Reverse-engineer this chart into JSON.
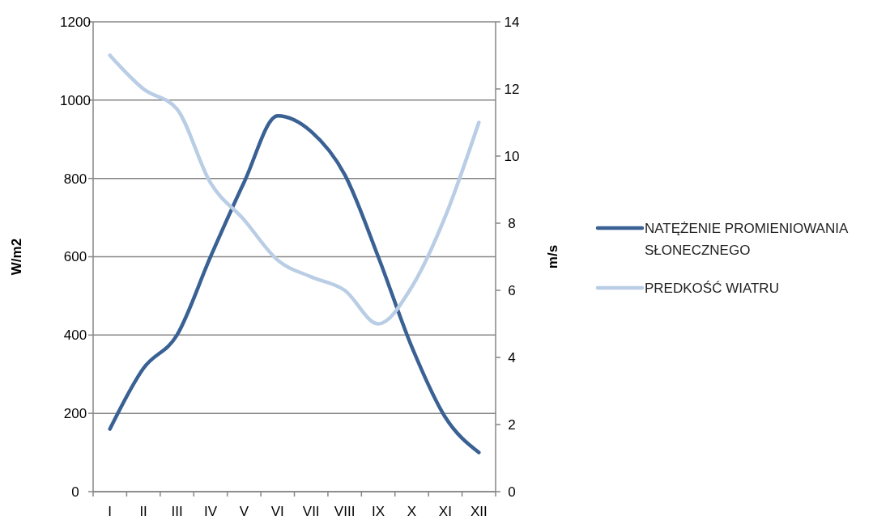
{
  "chart_data": {
    "type": "line",
    "categories": [
      "I",
      "II",
      "III",
      "IV",
      "V",
      "VI",
      "VII",
      "VIII",
      "IX",
      "X",
      "XI",
      "XII"
    ],
    "ylabel": "W/m2",
    "y2label": "m/s",
    "ylim": [
      0,
      1200
    ],
    "yticks": [
      0,
      200,
      400,
      600,
      800,
      1000,
      1200
    ],
    "y2lim": [
      0,
      14
    ],
    "y2ticks": [
      0,
      2,
      4,
      6,
      8,
      10,
      12,
      14
    ],
    "grid": "y",
    "legend": "right",
    "marker": "none",
    "line_style": "solid",
    "series": [
      {
        "name": "NATĘŻENIE PROMIENIOWANIA SŁONECZNEGO",
        "color": "#3a6193",
        "values": [
          160,
          315,
          400,
          600,
          790,
          960,
          920,
          810,
          600,
          370,
          190,
          100
        ]
      },
      {
        "name": "PREDKOŚĆ WIATRU",
        "color": "#b9cde5",
        "axis": "y2",
        "values": [
          13,
          12,
          11.4,
          9.2,
          8.1,
          6.9,
          6.4,
          6.0,
          5.0,
          6.1,
          8.2,
          11.0
        ]
      }
    ]
  }
}
